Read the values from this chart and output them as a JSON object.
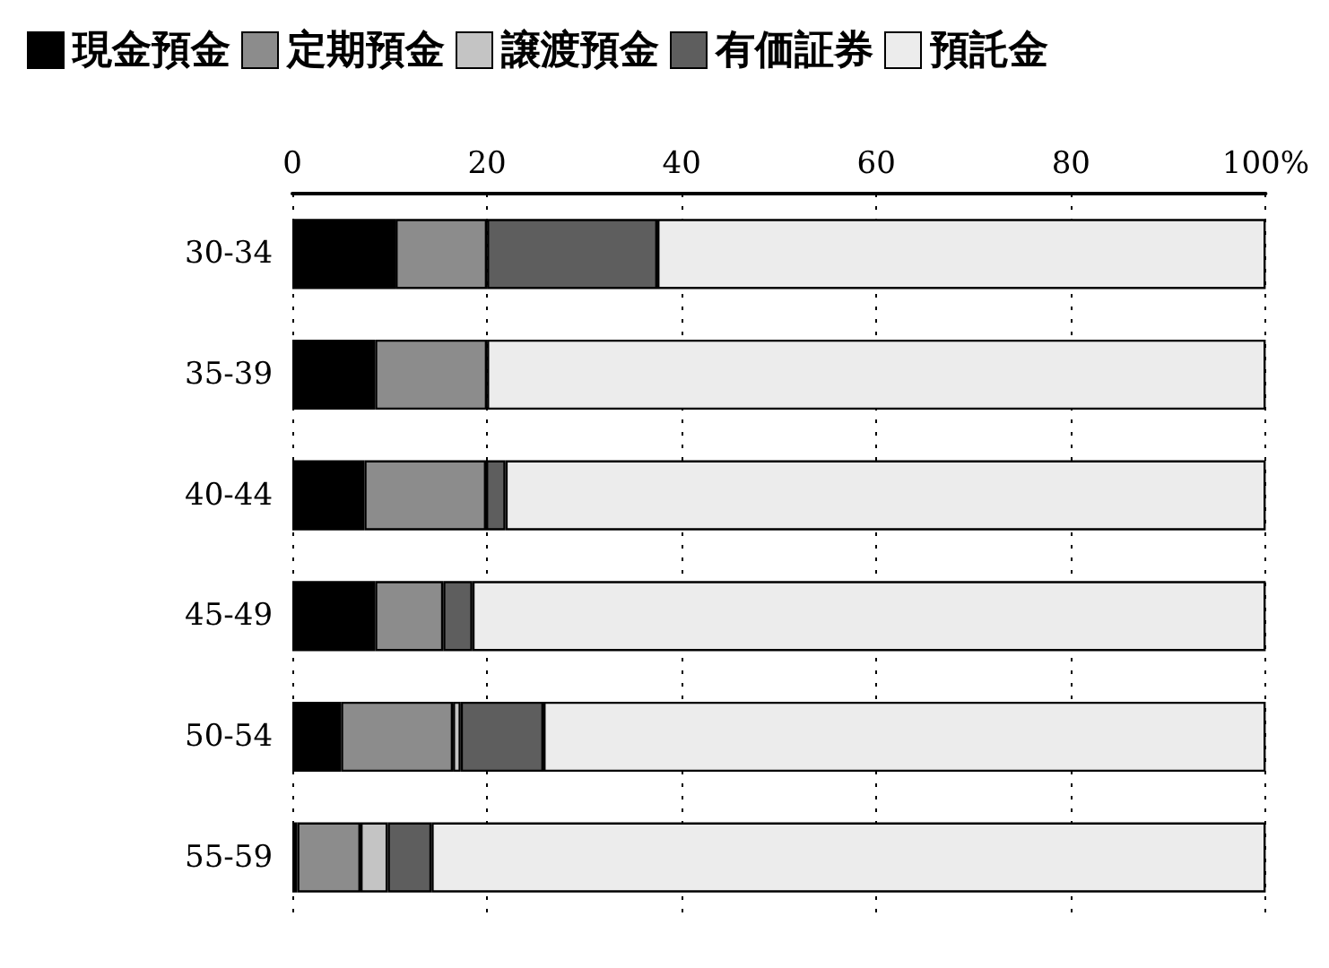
{
  "chart_data": {
    "type": "bar",
    "orientation": "horizontal",
    "stacked": true,
    "categories": [
      "30-34",
      "35-39",
      "40-44",
      "45-49",
      "50-54",
      "55-59"
    ],
    "series": [
      {
        "name": "現金預金",
        "color": "#000000",
        "values": [
          10.6,
          8.5,
          7.4,
          8.5,
          5,
          0.5
        ]
      },
      {
        "name": "定期預金",
        "color": "#8c8c8c",
        "values": [
          9.4,
          11.5,
          12.5,
          7,
          11.5,
          6.5
        ]
      },
      {
        "name": "譲渡預金",
        "color": "#c4c4c4",
        "values": [
          0,
          0,
          0,
          0,
          0.8,
          2.8
        ]
      },
      {
        "name": "有価証券",
        "color": "#5e5e5e",
        "values": [
          17.5,
          0,
          2,
          3,
          8.5,
          4.5
        ]
      },
      {
        "name": "預託金",
        "color": "#ececec",
        "values": [
          62.5,
          80,
          78.1,
          81.5,
          74.2,
          85.7
        ]
      }
    ],
    "xlim": [
      0,
      100
    ],
    "xticks": [
      0,
      20,
      40,
      60,
      80,
      {
        "value": 100,
        "label": "100%"
      }
    ],
    "grid": "x",
    "legend": "top left"
  }
}
